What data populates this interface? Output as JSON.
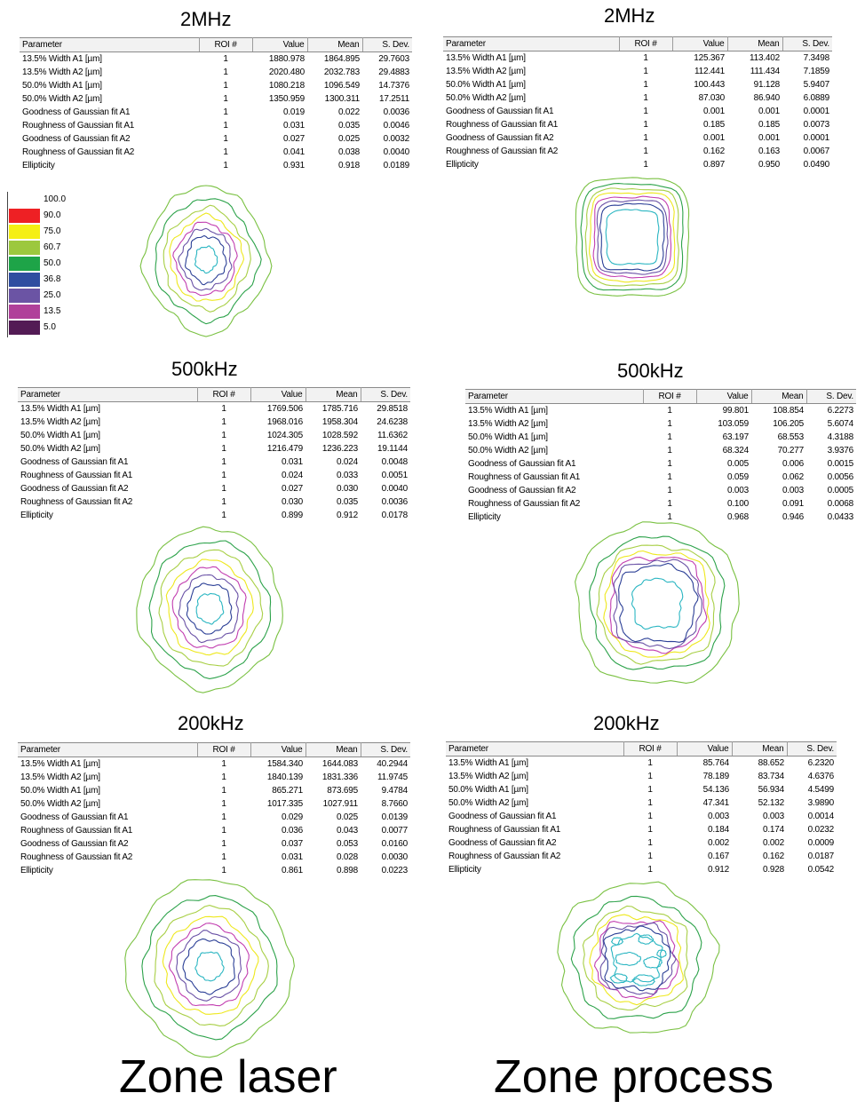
{
  "columns": [
    "Parameter",
    "ROI #",
    "Value",
    "Mean",
    "S. Dev."
  ],
  "parameters": [
    "13.5% Width A1 [µm]",
    "13.5% Width A2 [µm]",
    "50.0% Width A1 [µm]",
    "50.0% Width A2 [µm]",
    "Goodness of Gaussian fit A1",
    "Roughness of Gaussian fit A1",
    "Goodness of Gaussian fit A2",
    "Roughness of Gaussian fit A2",
    "Ellipticity"
  ],
  "legend": [
    {
      "label": "100.0",
      "color": "#ffffff"
    },
    {
      "label": "90.0",
      "color": "#ee2024"
    },
    {
      "label": "75.0",
      "color": "#f5ef14"
    },
    {
      "label": "60.7",
      "color": "#9cc83e"
    },
    {
      "label": "50.0",
      "color": "#1ea448"
    },
    {
      "label": "36.8",
      "color": "#2f4da0"
    },
    {
      "label": "25.0",
      "color": "#6b54a4"
    },
    {
      "label": "13.5",
      "color": "#b0409a"
    },
    {
      "label": "5.0",
      "color": "#531b55"
    }
  ],
  "contour_colors": [
    "#7ac142",
    "#2ca24a",
    "#a8cf45",
    "#eee81d",
    "#c23eb0",
    "#6a52a6",
    "#2b3f96",
    "#2bb6c2"
  ],
  "zones": {
    "laser": "Zone laser",
    "process": "Zone process"
  },
  "panels": {
    "laser_2mhz": {
      "frequency": "2MHz",
      "rows": [
        [
          "1",
          "1880.978",
          "1864.895",
          "29.7603"
        ],
        [
          "1",
          "2020.480",
          "2032.783",
          "29.4883"
        ],
        [
          "1",
          "1080.218",
          "1096.549",
          "14.7376"
        ],
        [
          "1",
          "1350.959",
          "1300.311",
          "17.2511"
        ],
        [
          "1",
          "0.019",
          "0.022",
          "0.0036"
        ],
        [
          "1",
          "0.031",
          "0.035",
          "0.0046"
        ],
        [
          "1",
          "0.027",
          "0.025",
          "0.0032"
        ],
        [
          "1",
          "0.041",
          "0.038",
          "0.0040"
        ],
        [
          "1",
          "0.931",
          "0.918",
          "0.0189"
        ]
      ]
    },
    "process_2mhz": {
      "frequency": "2MHz",
      "rows": [
        [
          "1",
          "125.367",
          "113.402",
          "7.3498"
        ],
        [
          "1",
          "112.441",
          "111.434",
          "7.1859"
        ],
        [
          "1",
          "100.443",
          "91.128",
          "5.9407"
        ],
        [
          "1",
          "87.030",
          "86.940",
          "6.0889"
        ],
        [
          "1",
          "0.001",
          "0.001",
          "0.0001"
        ],
        [
          "1",
          "0.185",
          "0.185",
          "0.0073"
        ],
        [
          "1",
          "0.001",
          "0.001",
          "0.0001"
        ],
        [
          "1",
          "0.162",
          "0.163",
          "0.0067"
        ],
        [
          "1",
          "0.897",
          "0.950",
          "0.0490"
        ]
      ]
    },
    "laser_500khz": {
      "frequency": "500kHz",
      "rows": [
        [
          "1",
          "1769.506",
          "1785.716",
          "29.8518"
        ],
        [
          "1",
          "1968.016",
          "1958.304",
          "24.6238"
        ],
        [
          "1",
          "1024.305",
          "1028.592",
          "11.6362"
        ],
        [
          "1",
          "1216.479",
          "1236.223",
          "19.1144"
        ],
        [
          "1",
          "0.031",
          "0.024",
          "0.0048"
        ],
        [
          "1",
          "0.024",
          "0.033",
          "0.0051"
        ],
        [
          "1",
          "0.027",
          "0.030",
          "0.0040"
        ],
        [
          "1",
          "0.030",
          "0.035",
          "0.0036"
        ],
        [
          "1",
          "0.899",
          "0.912",
          "0.0178"
        ]
      ]
    },
    "process_500khz": {
      "frequency": "500kHz",
      "rows": [
        [
          "1",
          "99.801",
          "108.854",
          "6.2273"
        ],
        [
          "1",
          "103.059",
          "106.205",
          "5.6074"
        ],
        [
          "1",
          "63.197",
          "68.553",
          "4.3188"
        ],
        [
          "1",
          "68.324",
          "70.277",
          "3.9376"
        ],
        [
          "1",
          "0.005",
          "0.006",
          "0.0015"
        ],
        [
          "1",
          "0.059",
          "0.062",
          "0.0056"
        ],
        [
          "1",
          "0.003",
          "0.003",
          "0.0005"
        ],
        [
          "1",
          "0.100",
          "0.091",
          "0.0068"
        ],
        [
          "1",
          "0.968",
          "0.946",
          "0.0433"
        ]
      ]
    },
    "laser_200khz": {
      "frequency": "200kHz",
      "rows": [
        [
          "1",
          "1584.340",
          "1644.083",
          "40.2944"
        ],
        [
          "1",
          "1840.139",
          "1831.336",
          "11.9745"
        ],
        [
          "1",
          "865.271",
          "873.695",
          "9.4784"
        ],
        [
          "1",
          "1017.335",
          "1027.911",
          "8.7660"
        ],
        [
          "1",
          "0.029",
          "0.025",
          "0.0139"
        ],
        [
          "1",
          "0.036",
          "0.043",
          "0.0077"
        ],
        [
          "1",
          "0.037",
          "0.053",
          "0.0160"
        ],
        [
          "1",
          "0.031",
          "0.028",
          "0.0030"
        ],
        [
          "1",
          "0.861",
          "0.898",
          "0.0223"
        ]
      ]
    },
    "process_200khz": {
      "frequency": "200kHz",
      "rows": [
        [
          "1",
          "85.764",
          "88.652",
          "6.2320"
        ],
        [
          "1",
          "78.189",
          "83.734",
          "4.6376"
        ],
        [
          "1",
          "54.136",
          "56.934",
          "4.5499"
        ],
        [
          "1",
          "47.341",
          "52.132",
          "3.9890"
        ],
        [
          "1",
          "0.003",
          "0.003",
          "0.0014"
        ],
        [
          "1",
          "0.184",
          "0.174",
          "0.0232"
        ],
        [
          "1",
          "0.002",
          "0.002",
          "0.0009"
        ],
        [
          "1",
          "0.167",
          "0.162",
          "0.0187"
        ],
        [
          "1",
          "0.912",
          "0.928",
          "0.0542"
        ]
      ]
    }
  }
}
